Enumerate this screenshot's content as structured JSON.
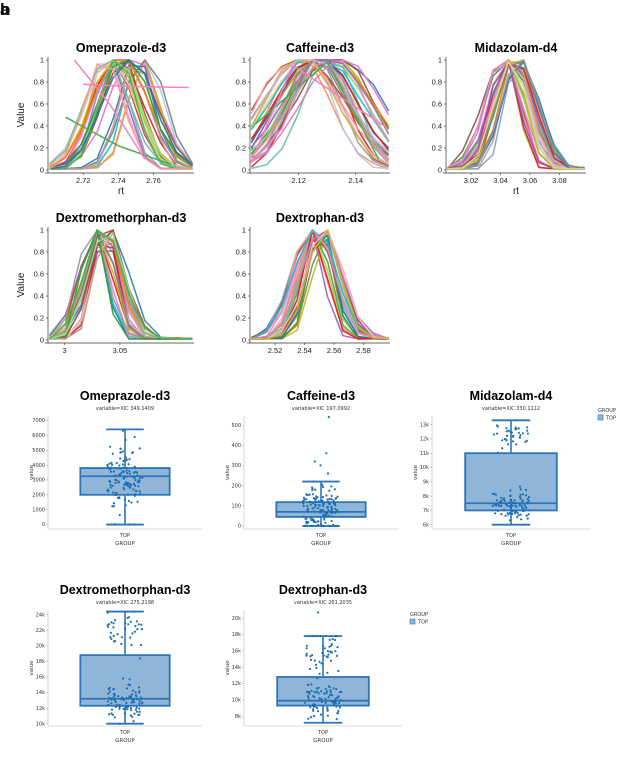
{
  "panel_labels": {
    "a": "a",
    "b": "b"
  },
  "chart_data": [
    {
      "type": "line",
      "panel": "a",
      "title": "Omeprazole-d3",
      "xlabel": "rt",
      "ylabel": "Value",
      "xlim": [
        2.7,
        2.783
      ],
      "ylim": [
        0,
        1
      ],
      "xticks": [
        2.72,
        2.74,
        2.76
      ],
      "xtick_labels": [
        "2.72",
        "2.74",
        "2.76"
      ],
      "yticks": [
        0,
        0.2,
        0.4,
        0.6,
        0.8,
        1
      ],
      "ytick_labels": [
        "0",
        "0.2",
        "0.4",
        "0.6",
        "0.8",
        "1"
      ],
      "series_count": 30,
      "peak_x": 2.743,
      "peak_spread": 0.012,
      "width": 0.019,
      "outliers": [
        {
          "x": [
            2.71,
            2.74,
            2.77
          ],
          "y": [
            0.48,
            0.22,
            0.05
          ]
        },
        {
          "x": [
            2.72,
            2.745,
            2.78
          ],
          "y": [
            0.78,
            0.76,
            0.75
          ]
        },
        {
          "x": [
            2.715,
            2.735,
            2.755
          ],
          "y": [
            1.0,
            0.6,
            0.1
          ]
        }
      ]
    },
    {
      "type": "line",
      "panel": "a",
      "title": "Caffeine-d3",
      "xlabel": "",
      "ylabel": "",
      "xlim": [
        2.103,
        2.152
      ],
      "ylim": [
        0,
        1
      ],
      "xticks": [
        2.12,
        2.14
      ],
      "xtick_labels": [
        "2.12",
        "2.14"
      ],
      "yticks": [
        0,
        0.2,
        0.4,
        0.6,
        0.8,
        1
      ],
      "ytick_labels": [
        "0",
        "0.2",
        "0.4",
        "0.6",
        "0.8",
        "1"
      ],
      "series_count": 30,
      "peak_x": 2.127,
      "peak_spread": 0.008,
      "width": 0.02,
      "outliers": [
        {
          "x": [
            2.105,
            2.13,
            2.148
          ],
          "y": [
            0.42,
            0.98,
            0.1
          ]
        },
        {
          "x": [
            2.103,
            2.118,
            2.15
          ],
          "y": [
            0.05,
            0.95,
            0.4
          ]
        }
      ]
    },
    {
      "type": "line",
      "panel": "a",
      "title": "Midazolam-d4",
      "xlabel": "rt",
      "ylabel": "",
      "xlim": [
        3.003,
        3.098
      ],
      "ylim": [
        0,
        1
      ],
      "xticks": [
        3.02,
        3.04,
        3.06,
        3.08
      ],
      "xtick_labels": [
        "3.02",
        "3.04",
        "3.06",
        "3.08"
      ],
      "yticks": [
        0,
        0.2,
        0.4,
        0.6,
        0.8,
        1
      ],
      "ytick_labels": [
        "0",
        "0.2",
        "0.4",
        "0.6",
        "0.8",
        "1"
      ],
      "series_count": 30,
      "peak_x": 3.048,
      "peak_spread": 0.007,
      "width": 0.018,
      "outliers": []
    },
    {
      "type": "line",
      "panel": "a",
      "title": "Dextromethorphan-d3",
      "xlabel": "",
      "ylabel": "Value",
      "xlim": [
        2.985,
        3.117
      ],
      "ylim": [
        0,
        1
      ],
      "xticks": [
        3,
        3.05
      ],
      "xtick_labels": [
        "3",
        "3.05"
      ],
      "yticks": [
        0,
        0.2,
        0.4,
        0.6,
        0.8,
        1
      ],
      "ytick_labels": [
        "0",
        "0.2",
        "0.4",
        "0.6",
        "0.8",
        "1"
      ],
      "series_count": 30,
      "peak_x": 3.033,
      "peak_spread": 0.008,
      "width": 0.022,
      "outliers": []
    },
    {
      "type": "line",
      "panel": "a",
      "title": "Dextrophan-d3",
      "xlabel": "",
      "ylabel": "",
      "xlim": [
        2.503,
        2.598
      ],
      "ylim": [
        0,
        1
      ],
      "xticks": [
        2.52,
        2.54,
        2.56,
        2.58
      ],
      "xtick_labels": [
        "2.52",
        "2.54",
        "2.56",
        "2.58"
      ],
      "yticks": [
        0,
        0.2,
        0.4,
        0.6,
        0.8,
        1
      ],
      "ytick_labels": [
        "0",
        "0.2",
        "0.4",
        "0.6",
        "0.8",
        "1"
      ],
      "series_count": 30,
      "peak_x": 2.549,
      "peak_spread": 0.007,
      "width": 0.018,
      "outliers": []
    },
    {
      "type": "box",
      "panel": "b",
      "title": "Omeprazole-d3",
      "subtitle": "variable=XIC 349.1409",
      "xlabel": "GROUP",
      "ylabel": "value",
      "category": "TOP",
      "ylim": [
        -300,
        7300
      ],
      "yticks": [
        0,
        1000,
        2000,
        3000,
        4000,
        5000,
        6000,
        7000
      ],
      "ytick_labels": [
        "0",
        "1000",
        "2000",
        "3000",
        "4000",
        "5000",
        "6000",
        "7000"
      ],
      "box": {
        "min": 0,
        "q1": 2000,
        "median": 3250,
        "q3": 3800,
        "max": 6400
      },
      "points": {
        "n": 130,
        "clusters": [
          {
            "center": 3200,
            "sd": 1000,
            "weight": 1
          }
        ]
      }
    },
    {
      "type": "box",
      "panel": "b",
      "title": "Caffeine-d3",
      "subtitle": "variable=XIC 197.0992",
      "xlabel": "GROUP",
      "ylabel": "value",
      "category": "TOP",
      "ylim": [
        -15,
        545
      ],
      "yticks": [
        0,
        100,
        200,
        300,
        400,
        500
      ],
      "ytick_labels": [
        "0",
        "100",
        "200",
        "300",
        "400",
        "500"
      ],
      "box": {
        "min": 0,
        "q1": 45,
        "median": 70,
        "q3": 118,
        "max": 220
      },
      "points": {
        "n": 140,
        "clusters": [
          {
            "center": 75,
            "sd": 55,
            "weight": 1
          }
        ],
        "extra": [
          260,
          300,
          320,
          360,
          540
        ]
      }
    },
    {
      "type": "box",
      "panel": "b",
      "title": "Midazolam-d4",
      "subtitle": "variable=XIC 330.1112",
      "xlabel": "GROUP",
      "ylabel": "value",
      "category": "TOP",
      "ylim": [
        5700,
        13600
      ],
      "yticks": [
        6000,
        7000,
        8000,
        9000,
        10000,
        11000,
        12000,
        13000
      ],
      "ytick_labels": [
        "6k",
        "7k",
        "8k",
        "9k",
        "10k",
        "11k",
        "12k",
        "13k"
      ],
      "box": {
        "min": 6000,
        "q1": 7000,
        "median": 7500,
        "q3": 11000,
        "max": 13300
      },
      "points": {
        "n": 130,
        "clusters": [
          {
            "center": 7300,
            "sd": 500,
            "weight": 0.72
          },
          {
            "center": 12200,
            "sd": 500,
            "weight": 0.28
          }
        ]
      },
      "legend": {
        "title": "GROUP",
        "label": "TOP",
        "position": "top-right"
      }
    },
    {
      "type": "box",
      "panel": "b",
      "title": "Dextromethorphan-d3",
      "subtitle": "variable=XIC 275.2198",
      "xlabel": "GROUP",
      "ylabel": "value",
      "category": "TOP",
      "ylim": [
        9700,
        24600
      ],
      "yticks": [
        10000,
        12000,
        14000,
        16000,
        18000,
        20000,
        22000,
        24000
      ],
      "ytick_labels": [
        "10k",
        "12k",
        "14k",
        "16k",
        "18k",
        "20k",
        "22k",
        "24k"
      ],
      "box": {
        "min": 10000,
        "q1": 12300,
        "median": 13200,
        "q3": 18800,
        "max": 24400
      },
      "points": {
        "n": 130,
        "clusters": [
          {
            "center": 12800,
            "sd": 1100,
            "weight": 0.7
          },
          {
            "center": 22000,
            "sd": 1500,
            "weight": 0.3
          }
        ]
      }
    },
    {
      "type": "box",
      "panel": "b",
      "title": "Dextrophan-d3",
      "subtitle": "variable=XIC 261.2035",
      "xlabel": "GROUP",
      "ylabel": "value",
      "category": "TOP",
      "ylim": [
        6800,
        21000
      ],
      "yticks": [
        8000,
        10000,
        12000,
        14000,
        16000,
        18000,
        20000
      ],
      "ytick_labels": [
        "8k",
        "10k",
        "12k",
        "14k",
        "16k",
        "18k",
        "20k"
      ],
      "box": {
        "min": 7200,
        "q1": 9300,
        "median": 9900,
        "q3": 12800,
        "max": 17800
      },
      "points": {
        "n": 130,
        "clusters": [
          {
            "center": 9800,
            "sd": 900,
            "weight": 0.62
          },
          {
            "center": 15500,
            "sd": 1800,
            "weight": 0.38
          }
        ],
        "extra": [
          20700
        ]
      },
      "legend": {
        "title": "GROUP",
        "label": "TOP",
        "position": "right"
      }
    }
  ],
  "colors": {
    "line_palette": [
      "#e41a1c",
      "#377eb8",
      "#4daf4a",
      "#984ea3",
      "#ff7f00",
      "#c7b42c",
      "#a65628",
      "#f781bf",
      "#999999",
      "#66c2a5",
      "#fc8d62",
      "#8da0cb",
      "#e78ac3",
      "#a6d854",
      "#17becf",
      "#bcbd22",
      "#1f77b4",
      "#d62728",
      "#2ca02c",
      "#9467bd",
      "#8c564b",
      "#e377c2",
      "#7f7f7f",
      "#ff9896",
      "#aec7e8",
      "#98df8a",
      "#c5b0d5",
      "#c49c94",
      "#f7b6d2",
      "#dbdb8d"
    ],
    "box_fill": "#8fb6d9",
    "box_stroke": "#2b75b8",
    "point": "#1f6fb0"
  }
}
